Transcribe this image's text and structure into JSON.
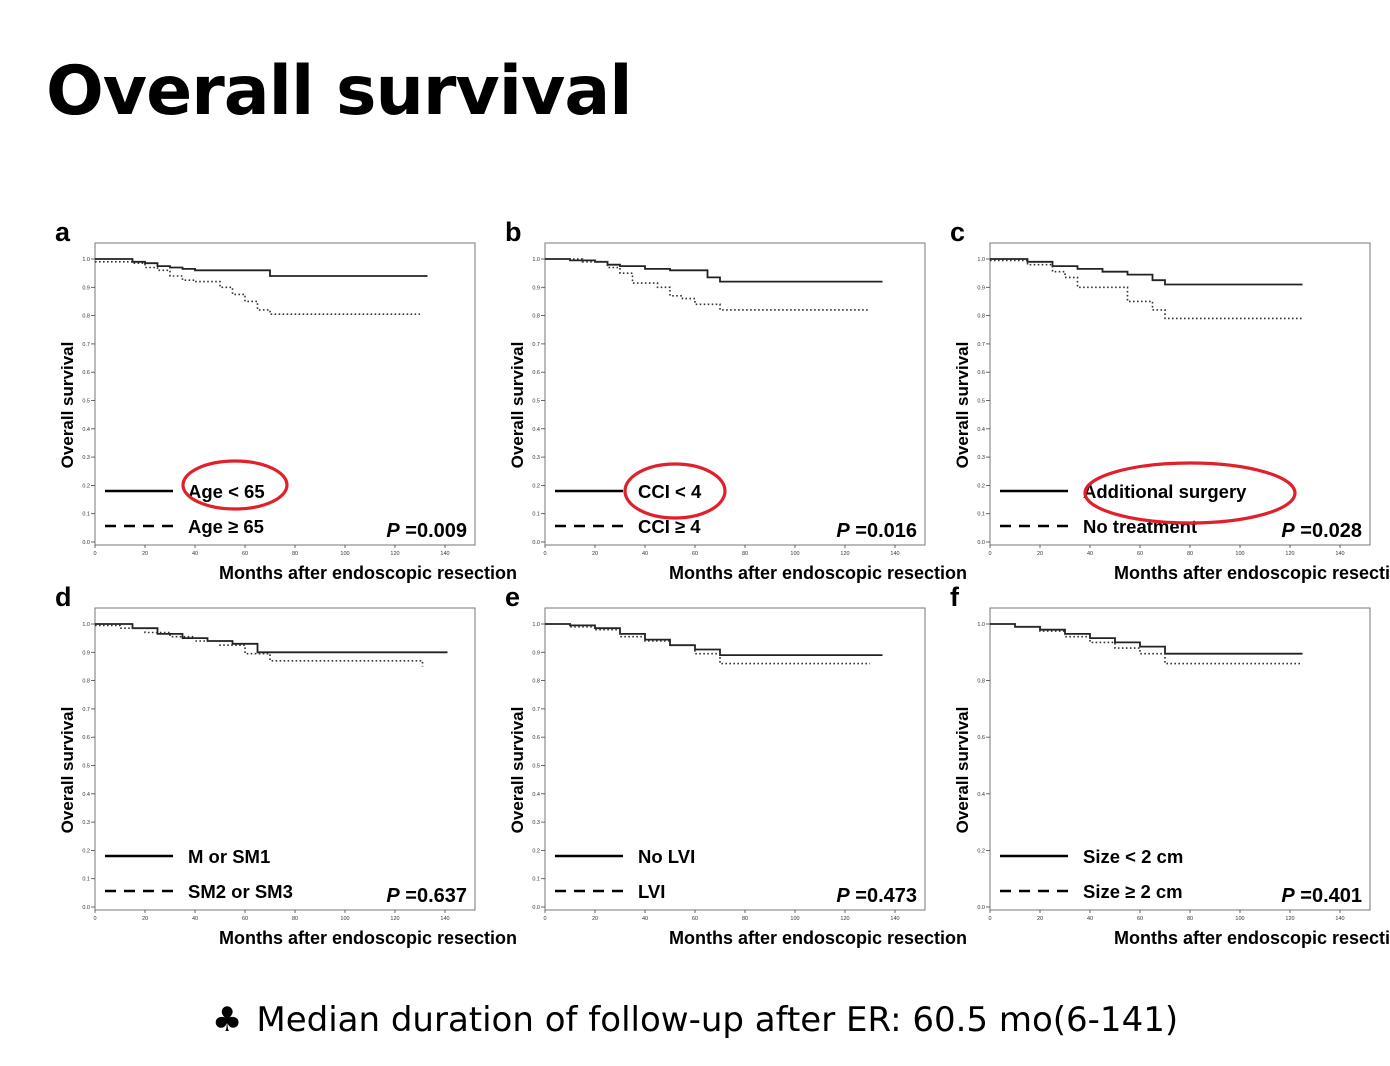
{
  "title": "Overall survival",
  "footer": {
    "symbol": "♣",
    "text": "Median duration of follow-up after ER: 60.5 mo(6-141)"
  },
  "colors": {
    "ink": "#000000",
    "annotation_circle": "#e0202a",
    "background": "#ffffff"
  },
  "chart_data": [
    {
      "panel": "a",
      "type": "line",
      "xlabel": "Months after endoscopic resection",
      "ylabel": "Overall survival",
      "xlim": [
        0,
        160
      ],
      "ylim": [
        0,
        1.0
      ],
      "xticks": [
        "0",
        "20",
        "40",
        "60",
        "80",
        "100",
        "120",
        "140"
      ],
      "yticks": [
        "0.0",
        "0.1",
        "0.2",
        "0.3",
        "0.4",
        "0.5",
        "0.6",
        "0.7",
        "0.8",
        "0.9",
        "1.0"
      ],
      "pvalue": "=0.009",
      "series": [
        {
          "name": "Age < 65",
          "style": "solid",
          "highlighted": true,
          "x": [
            0,
            10,
            15,
            20,
            25,
            30,
            35,
            40,
            70,
            133
          ],
          "y": [
            1.0,
            1.0,
            0.99,
            0.985,
            0.975,
            0.97,
            0.965,
            0.96,
            0.94,
            0.94
          ]
        },
        {
          "name": "Age ≥ 65",
          "style": "dotted",
          "x": [
            0,
            15,
            20,
            25,
            30,
            35,
            40,
            50,
            55,
            60,
            65,
            70,
            130
          ],
          "y": [
            0.99,
            0.985,
            0.97,
            0.96,
            0.94,
            0.925,
            0.92,
            0.9,
            0.875,
            0.85,
            0.82,
            0.805,
            0.805
          ]
        }
      ]
    },
    {
      "panel": "b",
      "type": "line",
      "xlabel": "Months after endoscopic resection",
      "ylabel": "Overall survival",
      "xlim": [
        0,
        160
      ],
      "ylim": [
        0,
        1.0
      ],
      "xticks": [
        "0",
        "20",
        "40",
        "60",
        "80",
        "100",
        "120",
        "140"
      ],
      "yticks": [
        "0.0",
        "0.1",
        "0.2",
        "0.3",
        "0.4",
        "0.5",
        "0.6",
        "0.7",
        "0.8",
        "0.9",
        "1.0"
      ],
      "pvalue": "=0.016",
      "series": [
        {
          "name": "CCI < 4",
          "style": "solid",
          "highlighted": true,
          "x": [
            0,
            10,
            20,
            25,
            30,
            40,
            50,
            65,
            70,
            135
          ],
          "y": [
            1.0,
            0.995,
            0.99,
            0.98,
            0.975,
            0.965,
            0.96,
            0.935,
            0.92,
            0.92
          ]
        },
        {
          "name": "CCI ≥ 4",
          "style": "dotted",
          "x": [
            0,
            15,
            25,
            30,
            35,
            45,
            50,
            55,
            60,
            70,
            130
          ],
          "y": [
            1.0,
            0.99,
            0.97,
            0.95,
            0.915,
            0.9,
            0.87,
            0.86,
            0.84,
            0.82,
            0.82
          ]
        }
      ]
    },
    {
      "panel": "c",
      "type": "line",
      "xlabel": "Months after endoscopic resection",
      "ylabel": "Overall survival",
      "xlim": [
        0,
        160
      ],
      "ylim": [
        0,
        1.0
      ],
      "xticks": [
        "0",
        "20",
        "40",
        "60",
        "80",
        "100",
        "120",
        "140"
      ],
      "yticks": [
        "0.0",
        "0.1",
        "0.2",
        "0.3",
        "0.4",
        "0.5",
        "0.6",
        "0.7",
        "0.8",
        "0.9",
        "1.0"
      ],
      "pvalue": "=0.028",
      "series": [
        {
          "name": "Additional surgery",
          "style": "solid",
          "highlighted": true,
          "x": [
            0,
            15,
            25,
            35,
            45,
            55,
            65,
            70,
            125
          ],
          "y": [
            1.0,
            0.99,
            0.975,
            0.965,
            0.955,
            0.945,
            0.925,
            0.91,
            0.91
          ]
        },
        {
          "name": "No treatment",
          "style": "dotted",
          "x": [
            0,
            15,
            25,
            30,
            35,
            45,
            55,
            65,
            70,
            125
          ],
          "y": [
            0.995,
            0.98,
            0.955,
            0.935,
            0.9,
            0.9,
            0.85,
            0.82,
            0.79,
            0.79
          ]
        }
      ]
    },
    {
      "panel": "d",
      "type": "line",
      "xlabel": "Months after endoscopic resection",
      "ylabel": "Overall survival",
      "xlim": [
        0,
        160
      ],
      "ylim": [
        0,
        1.0
      ],
      "xticks": [
        "0",
        "20",
        "40",
        "60",
        "80",
        "100",
        "120",
        "140"
      ],
      "yticks": [
        "0.0",
        "0.1",
        "0.2",
        "0.3",
        "0.4",
        "0.5",
        "0.6",
        "0.7",
        "0.8",
        "0.9",
        "1.0"
      ],
      "pvalue": "=0.637",
      "series": [
        {
          "name": "M or SM1",
          "style": "solid",
          "x": [
            0,
            15,
            25,
            35,
            45,
            55,
            65,
            141
          ],
          "y": [
            1.0,
            0.985,
            0.965,
            0.95,
            0.94,
            0.93,
            0.9,
            0.9
          ]
        },
        {
          "name": "SM2 or SM3",
          "style": "dotted",
          "x": [
            0,
            10,
            20,
            30,
            40,
            50,
            60,
            70,
            130,
            131
          ],
          "y": [
            0.995,
            0.985,
            0.97,
            0.955,
            0.94,
            0.925,
            0.895,
            0.87,
            0.87,
            0.85
          ]
        }
      ]
    },
    {
      "panel": "e",
      "type": "line",
      "xlabel": "Months after endoscopic resection",
      "ylabel": "Overall survival",
      "xlim": [
        0,
        160
      ],
      "ylim": [
        0,
        1.0
      ],
      "xticks": [
        "0",
        "20",
        "40",
        "60",
        "80",
        "100",
        "120",
        "140"
      ],
      "yticks": [
        "0.0",
        "0.1",
        "0.2",
        "0.3",
        "0.4",
        "0.5",
        "0.6",
        "0.7",
        "0.8",
        "0.9",
        "1.0"
      ],
      "pvalue": "=0.473",
      "series": [
        {
          "name": "No LVI",
          "style": "solid",
          "x": [
            0,
            10,
            20,
            30,
            40,
            50,
            60,
            70,
            135
          ],
          "y": [
            1.0,
            0.995,
            0.985,
            0.965,
            0.945,
            0.925,
            0.91,
            0.89,
            0.89
          ]
        },
        {
          "name": "LVI",
          "style": "dotted",
          "x": [
            0,
            10,
            20,
            30,
            40,
            50,
            60,
            70,
            130
          ],
          "y": [
            1.0,
            0.99,
            0.98,
            0.955,
            0.94,
            0.925,
            0.895,
            0.86,
            0.86
          ]
        }
      ]
    },
    {
      "panel": "f",
      "type": "line",
      "xlabel": "Months after endoscopic resection",
      "ylabel": "Overall survival",
      "xlim": [
        0,
        160
      ],
      "ylim": [
        0,
        1.0
      ],
      "xticks": [
        "0",
        "20",
        "40",
        "60",
        "80",
        "100",
        "120",
        "140"
      ],
      "yticks": [
        "0.0",
        "0.2",
        "0.4",
        "0.6",
        "0.8",
        "1.0"
      ],
      "pvalue": "=0.401",
      "series": [
        {
          "name": "Size < 2 cm",
          "style": "solid",
          "x": [
            0,
            10,
            20,
            30,
            40,
            50,
            60,
            70,
            125
          ],
          "y": [
            1.0,
            0.99,
            0.98,
            0.965,
            0.95,
            0.935,
            0.92,
            0.895,
            0.895
          ]
        },
        {
          "name": "Size ≥ 2 cm",
          "style": "dotted",
          "x": [
            0,
            10,
            20,
            30,
            40,
            50,
            60,
            70,
            125
          ],
          "y": [
            1.0,
            0.99,
            0.975,
            0.955,
            0.935,
            0.915,
            0.895,
            0.86,
            0.86
          ]
        }
      ]
    }
  ]
}
